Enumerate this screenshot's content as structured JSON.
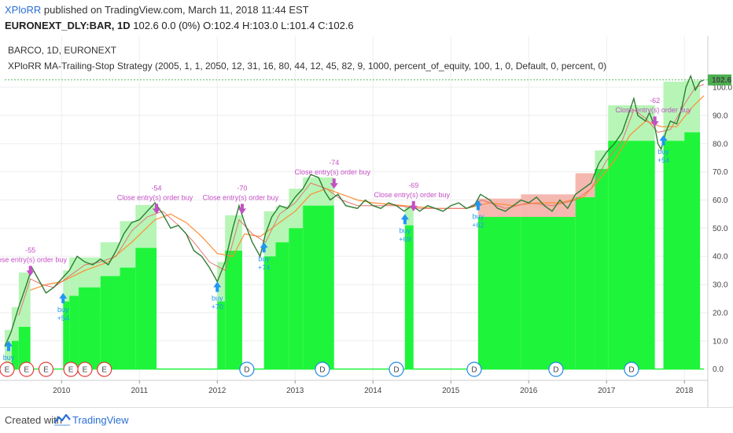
{
  "header": {
    "user": "XPloRR",
    "published": " published on TradingView.com, March 11, 2018 11:44 EST",
    "symbol": "EURONEXT_DLY:BAR, 1D",
    "quote": " 102.6 0.0 (0%) O:102.4 H:103.0 L:101.4 C:102.6"
  },
  "legend": {
    "symbol": "BARCO, 1D, EURONEXT",
    "strategy": "XPloRR MA-Trailing-Stop Strategy (2005, 1, 1, 2050, 12, 31, 16, 80, 44, 12, 45, 82, 9, 1000, percent_of_equity, 100, 1, 0, Default, 0, percent, 0)"
  },
  "footer": {
    "created_with": "Created with",
    "brand": "TradingView"
  },
  "colors": {
    "green": "#1ef53a",
    "light_green": "#b6f5b6",
    "pink": "#f5b8b0",
    "buy": "#2196f3",
    "sell": "#c44fc4",
    "ma_orange": "#ff8c33",
    "price_label": "#4caf50"
  },
  "chart_data": {
    "type": "line",
    "title": "BARCO, 1D, EURONEXT",
    "x_start": 2009.27,
    "x_end": 2018.25,
    "ylim": [
      -4,
      112
    ],
    "y_ticks": [
      "0.0",
      "10.0",
      "20.0",
      "30.0",
      "40.0",
      "50.0",
      "60.0",
      "70.0",
      "80.0",
      "90.0",
      "100.0"
    ],
    "x_ticks": [
      {
        "label": "2010",
        "x": 2010.0
      },
      {
        "label": "2011",
        "x": 2011.0
      },
      {
        "label": "2012",
        "x": 2012.0
      },
      {
        "label": "2013",
        "x": 2013.0
      },
      {
        "label": "2014",
        "x": 2014.0
      },
      {
        "label": "2015",
        "x": 2015.0
      },
      {
        "label": "2016",
        "x": 2016.0
      },
      {
        "label": "2017",
        "x": 2017.0
      },
      {
        "label": "2018",
        "x": 2018.0
      }
    ],
    "last_price": "102.6",
    "price": [
      [
        2009.27,
        8
      ],
      [
        2009.35,
        13
      ],
      [
        2009.45,
        22
      ],
      [
        2009.55,
        30
      ],
      [
        2009.62,
        36
      ],
      [
        2009.72,
        31
      ],
      [
        2009.8,
        27
      ],
      [
        2009.9,
        29
      ],
      [
        2010.0,
        32
      ],
      [
        2010.1,
        35
      ],
      [
        2010.2,
        40
      ],
      [
        2010.3,
        38
      ],
      [
        2010.4,
        37
      ],
      [
        2010.5,
        39
      ],
      [
        2010.6,
        37
      ],
      [
        2010.7,
        42
      ],
      [
        2010.8,
        48
      ],
      [
        2010.9,
        52
      ],
      [
        2011.0,
        53
      ],
      [
        2011.1,
        56
      ],
      [
        2011.2,
        59
      ],
      [
        2011.3,
        55
      ],
      [
        2011.4,
        50
      ],
      [
        2011.5,
        51
      ],
      [
        2011.6,
        48
      ],
      [
        2011.7,
        42
      ],
      [
        2011.8,
        40
      ],
      [
        2011.9,
        36
      ],
      [
        2012.0,
        31
      ],
      [
        2012.1,
        38
      ],
      [
        2012.2,
        50
      ],
      [
        2012.28,
        58
      ],
      [
        2012.35,
        52
      ],
      [
        2012.45,
        45
      ],
      [
        2012.55,
        40
      ],
      [
        2012.62,
        48
      ],
      [
        2012.7,
        54
      ],
      [
        2012.8,
        58
      ],
      [
        2012.9,
        57
      ],
      [
        2013.0,
        61
      ],
      [
        2013.1,
        64
      ],
      [
        2013.2,
        69
      ],
      [
        2013.3,
        68
      ],
      [
        2013.38,
        63
      ],
      [
        2013.45,
        60
      ],
      [
        2013.55,
        62
      ],
      [
        2013.65,
        58
      ],
      [
        2013.8,
        57
      ],
      [
        2013.9,
        60
      ],
      [
        2014.0,
        58
      ],
      [
        2014.1,
        57
      ],
      [
        2014.2,
        59
      ],
      [
        2014.3,
        58
      ],
      [
        2014.4,
        56
      ],
      [
        2014.5,
        58
      ],
      [
        2014.6,
        56
      ],
      [
        2014.7,
        58
      ],
      [
        2014.8,
        57
      ],
      [
        2014.9,
        56
      ],
      [
        2015.0,
        58
      ],
      [
        2015.1,
        59
      ],
      [
        2015.2,
        57
      ],
      [
        2015.3,
        58
      ],
      [
        2015.38,
        62
      ],
      [
        2015.5,
        60
      ],
      [
        2015.6,
        57
      ],
      [
        2015.7,
        56
      ],
      [
        2015.8,
        58
      ],
      [
        2015.9,
        60
      ],
      [
        2016.0,
        59
      ],
      [
        2016.1,
        61
      ],
      [
        2016.2,
        58
      ],
      [
        2016.3,
        56
      ],
      [
        2016.4,
        60
      ],
      [
        2016.5,
        57
      ],
      [
        2016.6,
        62
      ],
      [
        2016.7,
        64
      ],
      [
        2016.8,
        66
      ],
      [
        2016.9,
        73
      ],
      [
        2017.0,
        77
      ],
      [
        2017.1,
        80
      ],
      [
        2017.2,
        84
      ],
      [
        2017.3,
        92
      ],
      [
        2017.35,
        96
      ],
      [
        2017.4,
        90
      ],
      [
        2017.5,
        88
      ],
      [
        2017.55,
        91
      ],
      [
        2017.62,
        86
      ],
      [
        2017.66,
        80
      ],
      [
        2017.7,
        78
      ],
      [
        2017.76,
        84
      ],
      [
        2017.82,
        88
      ],
      [
        2017.9,
        87
      ],
      [
        2017.96,
        92
      ],
      [
        2018.02,
        100
      ],
      [
        2018.08,
        104
      ],
      [
        2018.14,
        99
      ],
      [
        2018.2,
        102
      ],
      [
        2018.25,
        102.6
      ]
    ],
    "ma_fast": [
      [
        2009.45,
        19
      ],
      [
        2009.6,
        32
      ],
      [
        2009.75,
        30
      ],
      [
        2009.9,
        29
      ],
      [
        2010.1,
        33
      ],
      [
        2010.3,
        37
      ],
      [
        2010.5,
        38
      ],
      [
        2010.7,
        40
      ],
      [
        2010.9,
        49
      ],
      [
        2011.1,
        54
      ],
      [
        2011.3,
        56
      ],
      [
        2011.5,
        51
      ],
      [
        2011.7,
        45
      ],
      [
        2011.9,
        38
      ],
      [
        2012.1,
        35
      ],
      [
        2012.28,
        53
      ],
      [
        2012.45,
        48
      ],
      [
        2012.62,
        45
      ],
      [
        2012.8,
        55
      ],
      [
        2013.0,
        59
      ],
      [
        2013.2,
        66
      ],
      [
        2013.4,
        64
      ],
      [
        2013.6,
        60
      ],
      [
        2013.8,
        58
      ],
      [
        2014.0,
        58
      ],
      [
        2014.3,
        58
      ],
      [
        2014.6,
        57
      ],
      [
        2014.9,
        57
      ],
      [
        2015.2,
        57
      ],
      [
        2015.4,
        60
      ],
      [
        2015.7,
        57
      ],
      [
        2016.0,
        59
      ],
      [
        2016.3,
        58
      ],
      [
        2016.6,
        60
      ],
      [
        2016.8,
        64
      ],
      [
        2017.0,
        74
      ],
      [
        2017.2,
        81
      ],
      [
        2017.35,
        92
      ],
      [
        2017.5,
        89
      ],
      [
        2017.66,
        84
      ],
      [
        2017.82,
        85
      ],
      [
        2018.0,
        94
      ],
      [
        2018.14,
        100
      ],
      [
        2018.25,
        101
      ]
    ],
    "ma_slow": [
      [
        2009.6,
        28
      ],
      [
        2009.8,
        30
      ],
      [
        2010.0,
        31
      ],
      [
        2010.3,
        35
      ],
      [
        2010.6,
        38
      ],
      [
        2010.9,
        45
      ],
      [
        2011.2,
        53
      ],
      [
        2011.4,
        55
      ],
      [
        2011.6,
        52
      ],
      [
        2011.8,
        47
      ],
      [
        2012.0,
        41
      ],
      [
        2012.2,
        40
      ],
      [
        2012.35,
        48
      ],
      [
        2012.55,
        47
      ],
      [
        2012.75,
        51
      ],
      [
        2013.0,
        56
      ],
      [
        2013.2,
        62
      ],
      [
        2013.4,
        64
      ],
      [
        2013.6,
        62
      ],
      [
        2013.8,
        60
      ],
      [
        2014.0,
        59
      ],
      [
        2014.4,
        58
      ],
      [
        2014.8,
        57
      ],
      [
        2015.2,
        57
      ],
      [
        2015.5,
        59
      ],
      [
        2015.8,
        58
      ],
      [
        2016.1,
        59
      ],
      [
        2016.4,
        59
      ],
      [
        2016.7,
        61
      ],
      [
        2016.9,
        67
      ],
      [
        2017.1,
        74
      ],
      [
        2017.3,
        83
      ],
      [
        2017.5,
        88
      ],
      [
        2017.7,
        86
      ],
      [
        2017.9,
        86
      ],
      [
        2018.1,
        93
      ],
      [
        2018.25,
        97
      ]
    ],
    "stop_fills": [
      {
        "x0": 2009.27,
        "x1": 2009.36,
        "y": 0
      },
      {
        "x0": 2009.36,
        "x1": 2009.45,
        "y": 10
      },
      {
        "x0": 2009.45,
        "x1": 2009.6,
        "y": 15
      },
      {
        "x0": 2010.02,
        "x1": 2010.1,
        "y": 24
      },
      {
        "x0": 2010.1,
        "x1": 2010.22,
        "y": 26
      },
      {
        "x0": 2010.22,
        "x1": 2010.5,
        "y": 29
      },
      {
        "x0": 2010.5,
        "x1": 2010.75,
        "y": 33
      },
      {
        "x0": 2010.75,
        "x1": 2010.95,
        "y": 36
      },
      {
        "x0": 2010.95,
        "x1": 2011.22,
        "y": 43
      },
      {
        "x0": 2012.0,
        "x1": 2012.1,
        "y": 24
      },
      {
        "x0": 2012.1,
        "x1": 2012.32,
        "y": 42
      },
      {
        "x0": 2012.6,
        "x1": 2012.75,
        "y": 40
      },
      {
        "x0": 2012.75,
        "x1": 2012.92,
        "y": 45
      },
      {
        "x0": 2012.92,
        "x1": 2013.1,
        "y": 50
      },
      {
        "x0": 2013.1,
        "x1": 2013.5,
        "y": 58
      },
      {
        "x0": 2014.41,
        "x1": 2014.52,
        "y": 51
      },
      {
        "x0": 2015.35,
        "x1": 2015.9,
        "y": 54
      },
      {
        "x0": 2015.9,
        "x1": 2016.6,
        "y": 54
      },
      {
        "x0": 2016.6,
        "x1": 2016.85,
        "y": 61
      },
      {
        "x0": 2016.85,
        "x1": 2017.02,
        "y": 71
      },
      {
        "x0": 2017.02,
        "x1": 2017.62,
        "y": 81
      },
      {
        "x0": 2017.73,
        "x1": 2018.2,
        "y": 81
      },
      {
        "x0": 2018.0,
        "x1": 2018.2,
        "y": 84
      }
    ],
    "buys": [
      {
        "x": 2009.32,
        "y": 10,
        "label": "buy",
        "value": "+55"
      },
      {
        "x": 2010.02,
        "y": 27,
        "label": "buy",
        "value": "+54"
      },
      {
        "x": 2012.0,
        "y": 31,
        "label": "buy",
        "value": "+70"
      },
      {
        "x": 2012.6,
        "y": 45,
        "label": "buy",
        "value": "+74"
      },
      {
        "x": 2014.41,
        "y": 55,
        "label": "buy",
        "value": "+69"
      },
      {
        "x": 2015.35,
        "y": 60,
        "label": "buy",
        "value": "+62"
      },
      {
        "x": 2017.73,
        "y": 83,
        "label": "buy",
        "value": "+54"
      }
    ],
    "sells": [
      {
        "x": 2009.6,
        "y": 33,
        "label": "Close entry(s) order buy",
        "value": "-55"
      },
      {
        "x": 2011.22,
        "y": 55,
        "label": "Close entry(s) order buy",
        "value": "-54"
      },
      {
        "x": 2012.32,
        "y": 55,
        "label": "Close entry(s) order buy",
        "value": "-70"
      },
      {
        "x": 2013.5,
        "y": 64,
        "label": "Close entry(s) order buy",
        "value": "-74"
      },
      {
        "x": 2014.52,
        "y": 56,
        "label": "Close entry(s) order buy",
        "value": "-69"
      },
      {
        "x": 2017.62,
        "y": 86,
        "label": "Close entry(s) order buy",
        "value": "-62"
      }
    ],
    "events": [
      {
        "x": 2009.3,
        "type": "E"
      },
      {
        "x": 2009.55,
        "type": "E"
      },
      {
        "x": 2009.8,
        "type": "E"
      },
      {
        "x": 2010.12,
        "type": "E"
      },
      {
        "x": 2010.3,
        "type": "E"
      },
      {
        "x": 2010.55,
        "type": "E"
      },
      {
        "x": 2012.38,
        "type": "D"
      },
      {
        "x": 2013.35,
        "type": "D"
      },
      {
        "x": 2014.3,
        "type": "D"
      },
      {
        "x": 2015.3,
        "type": "D"
      },
      {
        "x": 2016.35,
        "type": "D"
      },
      {
        "x": 2017.32,
        "type": "D"
      }
    ]
  }
}
